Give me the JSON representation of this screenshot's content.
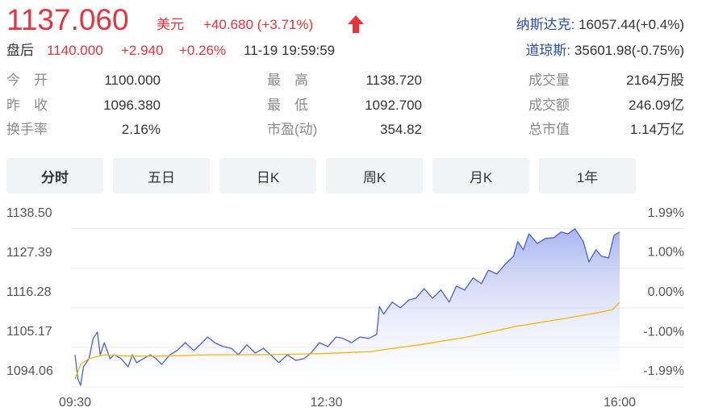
{
  "quote": {
    "price": "1137.060",
    "currency": "美元",
    "change": "+40.680 (+3.71%)",
    "after_hours": {
      "label": "盘后",
      "price": "1140.000",
      "change": "+2.940",
      "change_pct": "+0.26%",
      "time": "11-19 19:59:59"
    },
    "indices": [
      {
        "name": "纳斯达克:",
        "value": "16057.44(+0.4%)"
      },
      {
        "name": "道琼斯:",
        "value": "35601.98(-0.75%)"
      }
    ]
  },
  "stats": [
    [
      {
        "label": "今　开",
        "value": "1100.000"
      },
      {
        "label": "最　高",
        "value": "1138.720"
      },
      {
        "label": "成交量",
        "value": "2164万股"
      }
    ],
    [
      {
        "label": "昨　收",
        "value": "1096.380"
      },
      {
        "label": "最　低",
        "value": "1092.700"
      },
      {
        "label": "成交额",
        "value": "246.09亿"
      }
    ],
    [
      {
        "label": "换手率",
        "value": "2.16%"
      },
      {
        "label": "市盈(动)",
        "value": "354.82"
      },
      {
        "label": "总市值",
        "value": "1.14万亿"
      }
    ]
  ],
  "tabs": [
    "分时",
    "五日",
    "日K",
    "周K",
    "月K",
    "1年"
  ],
  "chart_data": {
    "type": "line",
    "grid": true,
    "xlim": [
      0,
      390
    ],
    "xticks": [
      {
        "value": 0,
        "label": "09:30"
      },
      {
        "value": 180,
        "label": "12:30"
      },
      {
        "value": 390,
        "label": "16:00"
      }
    ],
    "ylim": [
      1093.6,
      1144.8
    ],
    "yticks": [
      {
        "value": 1094.06,
        "label": "1094.06"
      },
      {
        "value": 1105.17,
        "label": "1105.17"
      },
      {
        "value": 1116.28,
        "label": "1116.28"
      },
      {
        "value": 1127.39,
        "label": "1127.39"
      },
      {
        "value": 1138.5,
        "label": "1138.50"
      }
    ],
    "y2lim": [
      -2.03,
      2.55
    ],
    "y2ticks": [
      {
        "value": -1.99,
        "label": "-1.99%"
      },
      {
        "value": -1.0,
        "label": "-1.00%"
      },
      {
        "value": 0,
        "label": "0.00%"
      },
      {
        "value": 1.0,
        "label": "1.00%"
      },
      {
        "value": 1.99,
        "label": "1.99%"
      }
    ],
    "series": [
      {
        "color": "#4a5fd8",
        "area": true,
        "x": [
          0,
          2,
          4,
          6,
          10,
          13,
          16,
          18,
          21,
          25,
          28,
          33,
          38,
          41,
          44,
          49,
          54,
          58,
          62,
          68,
          73,
          79,
          85,
          91,
          95,
          100,
          106,
          112,
          117,
          123,
          129,
          135,
          140,
          146,
          152,
          158,
          164,
          169,
          175,
          181,
          187,
          192,
          198,
          204,
          210,
          216,
          218,
          221,
          227,
          233,
          239,
          244,
          250,
          256,
          262,
          268,
          273,
          279,
          285,
          291,
          296,
          302,
          308,
          314,
          317,
          321,
          325,
          331,
          337,
          343,
          348,
          353,
          358,
          364,
          368,
          373,
          377,
          382,
          386,
          390
        ],
        "values": [
          1103.1,
          1096.3,
          1094.5,
          1099.7,
          1102.0,
          1107.7,
          1109.5,
          1103.1,
          1106.5,
          1102.0,
          1103.1,
          1102.0,
          1099.7,
          1103.1,
          1100.9,
          1102.0,
          1103.1,
          1102.0,
          1100.4,
          1103.1,
          1104.3,
          1106.5,
          1104.3,
          1106.5,
          1108.1,
          1106.5,
          1105.4,
          1104.9,
          1103.1,
          1105.9,
          1103.6,
          1104.9,
          1103.1,
          1100.9,
          1103.1,
          1101.5,
          1102.0,
          1103.6,
          1106.5,
          1105.4,
          1108.1,
          1107.7,
          1106.5,
          1108.1,
          1107.7,
          1108.8,
          1116.7,
          1114.5,
          1117.9,
          1116.3,
          1118.5,
          1119.0,
          1121.7,
          1119.0,
          1121.3,
          1117.9,
          1122.4,
          1121.3,
          1124.7,
          1123.1,
          1126.9,
          1125.8,
          1128.5,
          1130.8,
          1134.9,
          1132.6,
          1137.1,
          1134.4,
          1135.8,
          1136.0,
          1137.6,
          1137.1,
          1138.5,
          1134.9,
          1129.2,
          1132.6,
          1130.8,
          1130.3,
          1136.7,
          1137.6
        ]
      },
      {
        "color": "#f2b705",
        "area": false,
        "x": [
          0,
          4,
          10,
          21,
          39,
          62,
          96,
          131,
          177,
          212,
          224,
          247,
          281,
          316,
          351,
          374,
          385,
          390
        ],
        "values": [
          1096.3,
          1100.4,
          1102.0,
          1103.1,
          1102.7,
          1102.7,
          1103.1,
          1103.1,
          1103.4,
          1104.0,
          1104.7,
          1105.9,
          1108.1,
          1111.1,
          1113.3,
          1114.9,
          1115.8,
          1117.9
        ]
      }
    ]
  }
}
